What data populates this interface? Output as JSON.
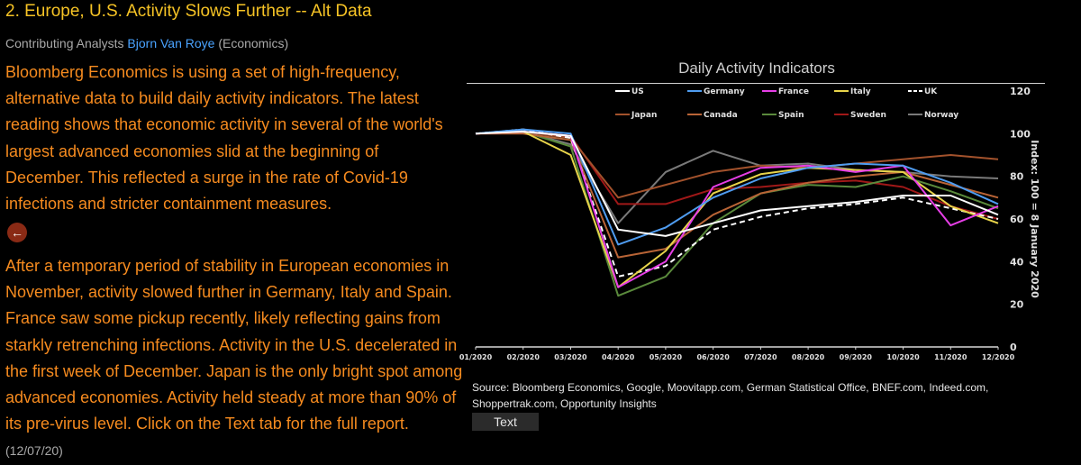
{
  "story": {
    "title": "2. Europe, U.S. Activity Slows Further -- Alt Data",
    "byline_prefix": "Contributing Analysts",
    "analyst": "Bjorn Van Roye",
    "analyst_dept": "(Economics)",
    "paragraph1": "Bloomberg Economics is using a set of high-frequency, alternative data to build daily activity indicators. The latest reading shows that economic activity in several of the world's largest advanced economies slid at the beginning of December. This reflected a surge in the rate of Covid-19 infections and stricter containment measures.",
    "paragraph2": "After a temporary period of stability in European economies in November, activity slowed further in Germany, Italy and Spain. France saw some pickup recently, likely reflecting gains from starkly retrenching infections. Activity in the U.S. decelerated in the first week of December. Japan is the only bright spot among advanced economies. Activity held steady at more than 90% of its pre-virus level. Click on the Text tab for the full report.",
    "date": "(12/07/20)",
    "back_icon": "left-arrow-icon"
  },
  "chart_data": {
    "type": "line",
    "title": "Daily Activity Indicators",
    "ylabel": "Index: 100 = 8 January 2020",
    "ylim": [
      0,
      120
    ],
    "yticks": [
      0,
      20,
      40,
      60,
      80,
      100,
      120
    ],
    "x": [
      "01/2020",
      "02/2020",
      "03/2020",
      "04/2020",
      "05/2020",
      "06/2020",
      "07/2020",
      "08/2020",
      "09/2020",
      "10/2020",
      "11/2020",
      "12/2020"
    ],
    "grid": false,
    "legend_position": "top",
    "series": [
      {
        "name": "US",
        "color": "#ffffff",
        "dash": "solid",
        "values": [
          100,
          101,
          99,
          55,
          52,
          58,
          64,
          66,
          68,
          71,
          71,
          62
        ]
      },
      {
        "name": "Germany",
        "color": "#4f9cf0",
        "dash": "solid",
        "values": [
          100,
          102,
          100,
          48,
          56,
          70,
          79,
          84,
          86,
          85,
          77,
          67
        ]
      },
      {
        "name": "France",
        "color": "#e63ee6",
        "dash": "solid",
        "values": [
          100,
          101,
          99,
          28,
          40,
          75,
          84,
          85,
          82,
          85,
          57,
          66
        ]
      },
      {
        "name": "Italy",
        "color": "#e8d44a",
        "dash": "solid",
        "values": [
          100,
          101,
          90,
          28,
          45,
          72,
          81,
          84,
          83,
          82,
          66,
          58
        ]
      },
      {
        "name": "UK",
        "color": "#ffffff",
        "dash": "dash",
        "values": [
          100,
          102,
          98,
          33,
          38,
          55,
          61,
          65,
          67,
          70,
          65,
          60
        ]
      },
      {
        "name": "Japan",
        "color": "#a3522c",
        "dash": "solid",
        "values": [
          100,
          101,
          98,
          70,
          76,
          82,
          85,
          84,
          86,
          88,
          90,
          88
        ]
      },
      {
        "name": "Canada",
        "color": "#b96436",
        "dash": "solid",
        "values": [
          100,
          100,
          97,
          42,
          46,
          62,
          72,
          77,
          80,
          82,
          76,
          70
        ]
      },
      {
        "name": "Spain",
        "color": "#5a8a3c",
        "dash": "solid",
        "values": [
          100,
          101,
          94,
          24,
          33,
          58,
          72,
          76,
          75,
          80,
          73,
          65
        ]
      },
      {
        "name": "Sweden",
        "color": "#a01818",
        "dash": "solid",
        "values": [
          100,
          101,
          99,
          67,
          67,
          74,
          75,
          77,
          78,
          75,
          66,
          60
        ]
      },
      {
        "name": "Norway",
        "color": "#7a7a7a",
        "dash": "solid",
        "values": [
          100,
          101,
          95,
          58,
          82,
          92,
          85,
          86,
          83,
          82,
          80,
          79
        ]
      }
    ]
  },
  "source": "Source: Bloomberg Economics, Google, Moovitapp.com, German Statistical Office, BNEF.com, Indeed.com, Shoppertrak.com, Opportunity Insights",
  "text_tab_label": "Text"
}
